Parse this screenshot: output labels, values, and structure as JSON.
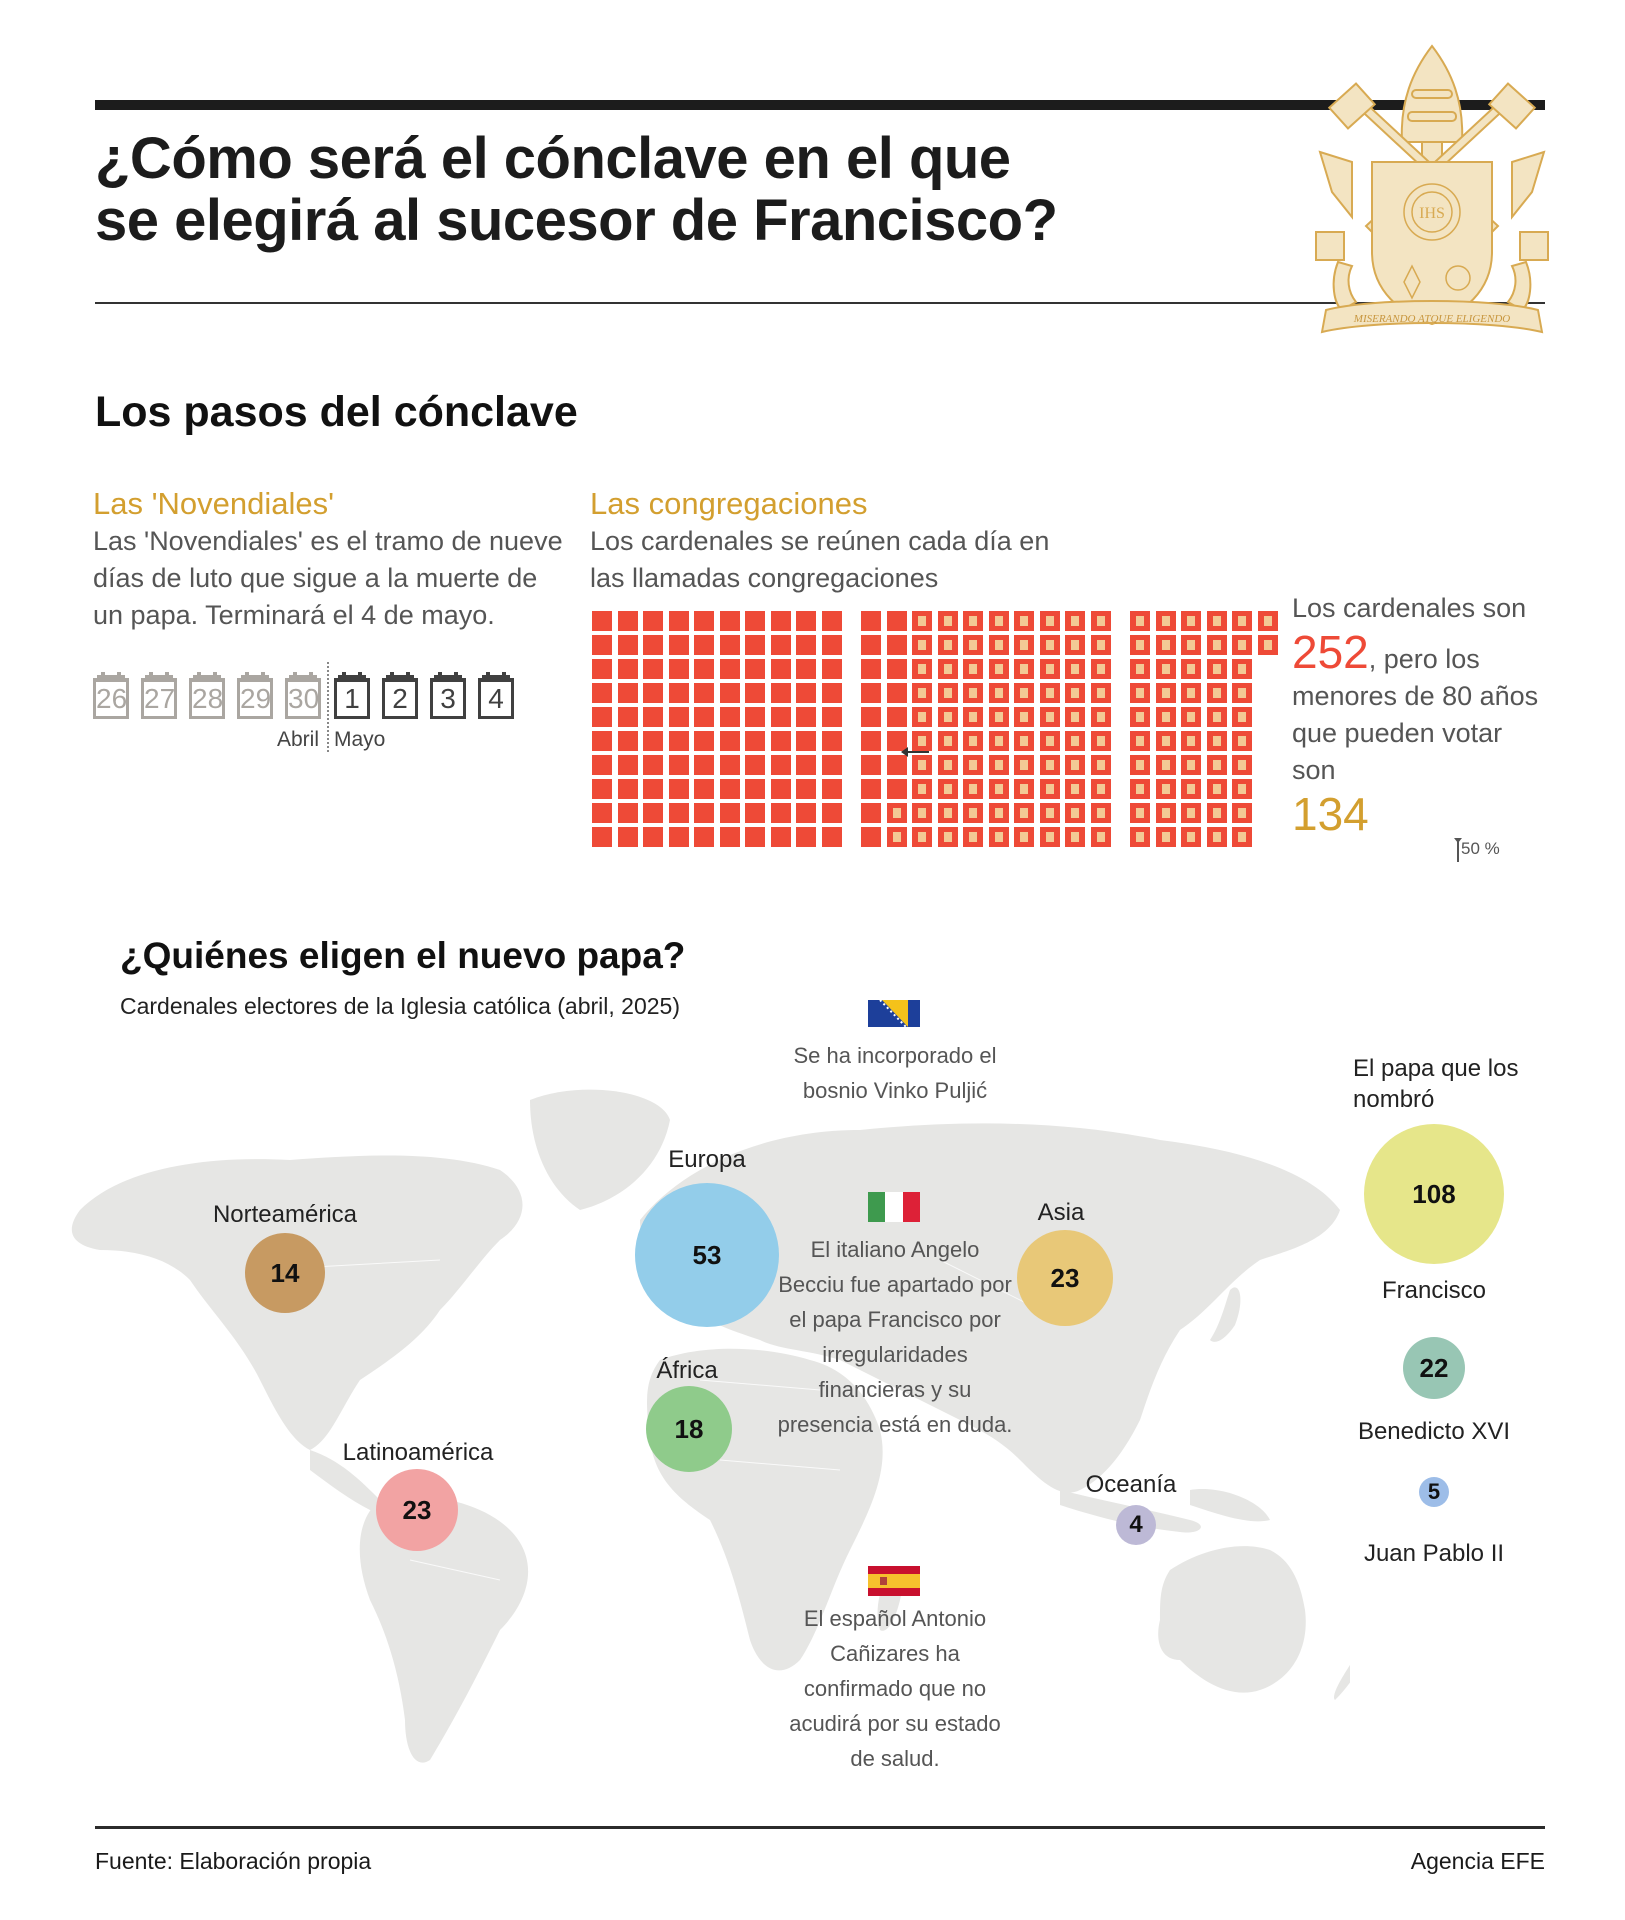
{
  "header": {
    "title_line1": "¿Cómo será el cónclave en el que",
    "title_line2": "se elegirá al sucesor de Francisco?",
    "crest_motto": "MISERANDO ATQUE ELIGENDO",
    "crest_monogram": "IHS"
  },
  "steps": {
    "title": "Los pasos del cónclave",
    "novendiales": {
      "title": "Las 'Novendiales'",
      "text": "Las 'Novendiales' es el tramo de nueve días de luto que sigue a la muerte de un papa. Terminará el 4 de mayo.",
      "days_april": [
        "26",
        "27",
        "28",
        "29",
        "30"
      ],
      "days_may": [
        "1",
        "2",
        "3",
        "4"
      ],
      "month_april": "Abril",
      "month_may": "Mayo"
    },
    "congregaciones": {
      "title": "Las congregaciones",
      "text": "Los cardenales se reúnen cada día en las llamadas congregaciones"
    },
    "totals": {
      "intro": "Los cardenales son",
      "total": "252",
      "middle": ", pero los menores de 80 años que pueden votar son",
      "electors": "134",
      "half_marker": "50 %"
    },
    "colors": {
      "accent_gold": "#d39f2f",
      "cell_red": "#ee4a37",
      "cell_inner": "#f3c995"
    }
  },
  "who": {
    "title": "¿Quiénes eligen el nuevo papa?",
    "subtitle": "Cardenales electores de la Iglesia católica (abril, 2025)",
    "regions": [
      {
        "name": "Norteamérica",
        "value": "14",
        "color": "#c79a62"
      },
      {
        "name": "Europa",
        "value": "53",
        "color": "#93cdea"
      },
      {
        "name": "Asia",
        "value": "23",
        "color": "#e8c878"
      },
      {
        "name": "África",
        "value": "18",
        "color": "#8fcb8b"
      },
      {
        "name": "Latinoamérica",
        "value": "23",
        "color": "#f2a3a3"
      },
      {
        "name": "Oceanía",
        "value": "4",
        "color": "#bdb9d6"
      }
    ],
    "notes": [
      {
        "flag": "bosnia-flag",
        "text": "Se ha incorporado el bosnio Vinko Puljić"
      },
      {
        "flag": "italy-flag",
        "text": "El italiano Angelo Becciu fue apartado por el papa Francisco por irregularidades financieras y su presencia está en duda."
      },
      {
        "flag": "spain-flag",
        "text": "El español Antonio Cañizares ha confirmado que no acudirá por su estado de salud."
      }
    ],
    "popes": {
      "title": "El papa que los nombró",
      "items": [
        {
          "name": "Francisco",
          "value": "108",
          "color": "#e6e68a"
        },
        {
          "name": "Benedicto XVI",
          "value": "22",
          "color": "#98c6b4"
        },
        {
          "name": "Juan Pablo II",
          "value": "5",
          "color": "#9dbde8"
        }
      ]
    }
  },
  "footer": {
    "source": "Fuente: Elaboración propia",
    "agency": "Agencia EFE"
  },
  "chart_data": [
    {
      "type": "scatter",
      "title": "¿Quiénes eligen el nuevo papa?",
      "subtitle": "Cardenales electores de la Iglesia católica (abril, 2025)",
      "kind": "proportional-bubble-map",
      "categories": [
        "Norteamérica",
        "Europa",
        "Asia",
        "África",
        "Latinoamérica",
        "Oceanía"
      ],
      "values": [
        14,
        53,
        23,
        18,
        23,
        4
      ]
    },
    {
      "type": "scatter",
      "title": "El papa que los nombró",
      "kind": "proportional-bubbles",
      "categories": [
        "Francisco",
        "Benedicto XVI",
        "Juan Pablo II"
      ],
      "values": [
        108,
        22,
        5
      ]
    },
    {
      "type": "table",
      "title": "Las congregaciones",
      "kind": "waffle",
      "total_cardinals": 252,
      "electors_under_80": 134,
      "annotation": "50 %"
    },
    {
      "type": "table",
      "title": "Las 'Novendiales'",
      "kind": "calendar",
      "days": [
        "26 Abril",
        "27 Abril",
        "28 Abril",
        "29 Abril",
        "30 Abril",
        "1 Mayo",
        "2 Mayo",
        "3 Mayo",
        "4 Mayo"
      ],
      "end": "4 de mayo"
    }
  ]
}
